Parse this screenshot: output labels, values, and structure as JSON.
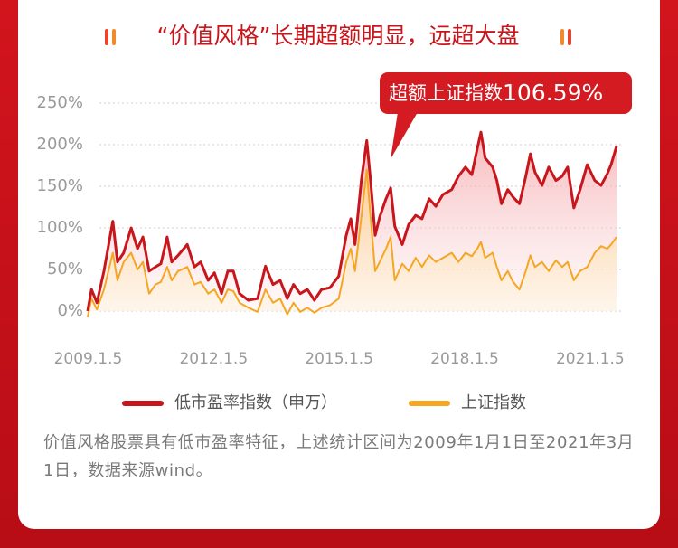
{
  "chart_data": {
    "type": "line",
    "title": "“价值风格”长期超额明显，远超大盘",
    "annotation": "超额上证指数",
    "annotation_value": "106.59%",
    "note": "价值风格股票具有低市盈率特征，上述统计区间为2009年1月1日至2021年3月1日，数据来源wind。",
    "xlim": [
      2009,
      2021.64
    ],
    "xticks": [
      {
        "value": 2009.01,
        "label": "2009.1.5"
      },
      {
        "value": 2012.01,
        "label": "2012.1.5"
      },
      {
        "value": 2015.01,
        "label": "2015.1.5"
      },
      {
        "value": 2018.01,
        "label": "2018.1.5"
      },
      {
        "value": 2021.01,
        "label": "2021.1.5"
      }
    ],
    "ylim": [
      0,
      250
    ],
    "yticks": [
      {
        "value": 0,
        "label": "0%"
      },
      {
        "value": 50,
        "label": "50%"
      },
      {
        "value": 100,
        "label": "100%"
      },
      {
        "value": 150,
        "label": "150%"
      },
      {
        "value": 200,
        "label": "200%"
      },
      {
        "value": 250,
        "label": "250%"
      }
    ],
    "grid": true,
    "x": [
      2009.0,
      2009.09,
      2009.22,
      2009.39,
      2009.6,
      2009.71,
      2009.86,
      2010.04,
      2010.19,
      2010.32,
      2010.47,
      2010.62,
      2010.75,
      2010.9,
      2011.01,
      2011.16,
      2011.38,
      2011.55,
      2011.7,
      2011.88,
      2012.03,
      2012.2,
      2012.35,
      2012.48,
      2012.63,
      2012.84,
      2013.06,
      2013.25,
      2013.43,
      2013.6,
      2013.77,
      2013.92,
      2014.08,
      2014.25,
      2014.42,
      2014.59,
      2014.79,
      2015.0,
      2015.18,
      2015.29,
      2015.39,
      2015.54,
      2015.67,
      2015.76,
      2015.87,
      2015.98,
      2016.13,
      2016.24,
      2016.34,
      2016.52,
      2016.67,
      2016.84,
      2016.99,
      2017.16,
      2017.32,
      2017.49,
      2017.7,
      2017.86,
      2018.03,
      2018.18,
      2018.31,
      2018.4,
      2018.5,
      2018.68,
      2018.78,
      2018.89,
      2019.04,
      2019.17,
      2019.32,
      2019.47,
      2019.58,
      2019.69,
      2019.86,
      2020.02,
      2020.19,
      2020.34,
      2020.47,
      2020.62,
      2020.77,
      2020.94,
      2021.12,
      2021.27,
      2021.42,
      2021.51,
      2021.64
    ],
    "series": [
      {
        "name": "低市盈率指数（申万）",
        "color": "#c8161d",
        "values": [
          0,
          26,
          10,
          48,
          108,
          59,
          70,
          100,
          75,
          89,
          48,
          53,
          57,
          89,
          59,
          67,
          80,
          53,
          59,
          37,
          46,
          21,
          48,
          48,
          21,
          13,
          15,
          54,
          32,
          37,
          15,
          32,
          21,
          26,
          13,
          26,
          28,
          42,
          91,
          111,
          80,
          157,
          205,
          157,
          91,
          113,
          135,
          148,
          102,
          80,
          104,
          115,
          111,
          135,
          126,
          140,
          146,
          162,
          173,
          164,
          195,
          215,
          184,
          173,
          157,
          129,
          146,
          137,
          129,
          162,
          189,
          167,
          151,
          173,
          157,
          162,
          173,
          124,
          146,
          176,
          157,
          151,
          165,
          176,
          198
        ]
      },
      {
        "name": "上证指数",
        "color": "#f5a623",
        "values": [
          -7,
          15,
          2,
          26,
          70,
          37,
          59,
          70,
          50,
          59,
          21,
          32,
          35,
          53,
          37,
          48,
          53,
          32,
          35,
          21,
          26,
          10,
          26,
          24,
          10,
          4,
          -1,
          26,
          10,
          15,
          -4,
          10,
          -1,
          4,
          -2,
          4,
          7,
          15,
          59,
          75,
          48,
          113,
          170,
          113,
          48,
          59,
          75,
          89,
          37,
          57,
          48,
          64,
          53,
          67,
          59,
          64,
          70,
          59,
          70,
          66,
          75,
          83,
          64,
          70,
          53,
          37,
          48,
          35,
          26,
          48,
          67,
          53,
          59,
          48,
          61,
          53,
          59,
          37,
          48,
          53,
          70,
          78,
          75,
          80,
          89
        ]
      }
    ]
  }
}
